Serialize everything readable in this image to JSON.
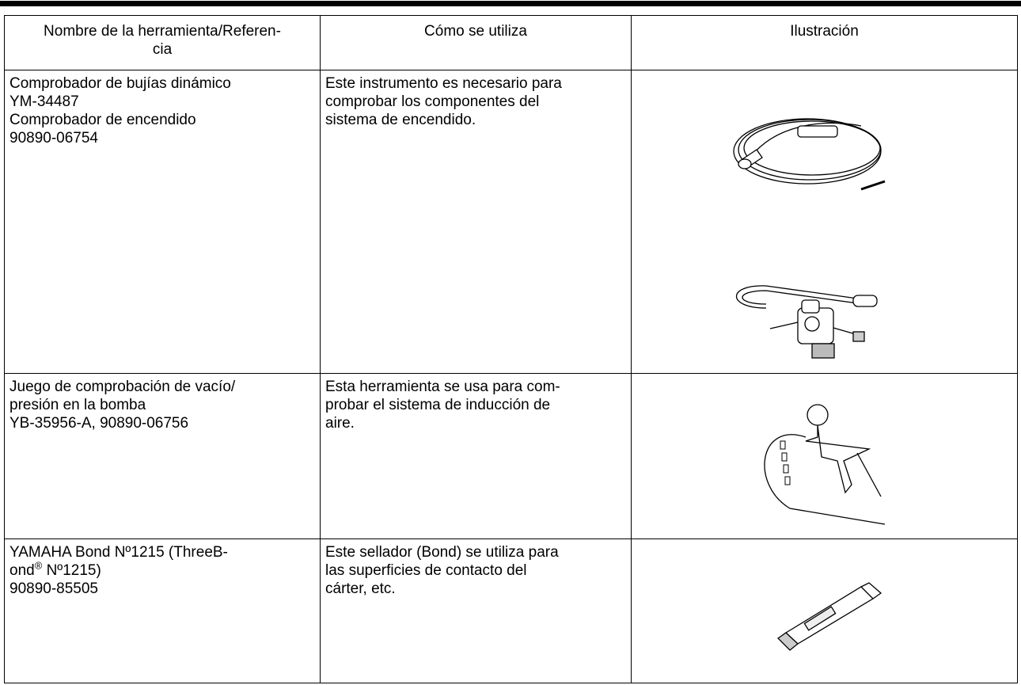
{
  "table": {
    "header": [
      [
        "Nombre de la herramienta/Referen-",
        "cia"
      ],
      [
        "Cómo se utiliza"
      ],
      [
        "Ilustración"
      ]
    ],
    "rows": [
      {
        "name": [
          "Comprobador de bujías dinámico",
          "YM-34487",
          "Comprobador de encendido",
          "90890-06754"
        ],
        "usage": [
          "Este instrumento es necesario para",
          "comprobar los componentes del",
          "sistema de encendido."
        ]
      },
      {
        "name": [
          "Juego de comprobación de vacío/",
          "presión en la bomba",
          "YB-35956-A, 90890-06756"
        ],
        "usage": [
          "Esta herramienta se usa para com-",
          "probar el sistema de inducción de",
          "aire."
        ]
      },
      {
        "name": [
          "YAMAHA Bond Nº1215 (ThreeB-",
          {
            "text": "ond",
            "sup": "®",
            "rest": " Nº1215)"
          },
          "90890-85505"
        ],
        "usage": [
          "Este sellador (Bond) se utiliza para",
          "las superficies de contacto del",
          "cárter, etc."
        ]
      }
    ]
  }
}
